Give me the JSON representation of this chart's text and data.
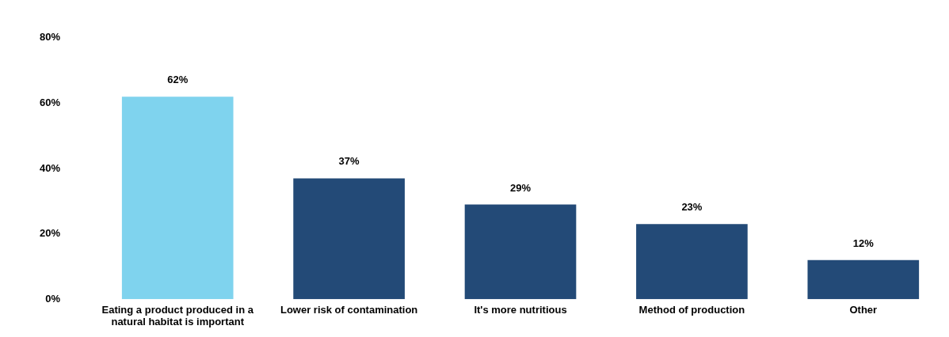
{
  "chart_data": {
    "type": "bar",
    "categories": [
      "Eating a product produced in a natural habitat is important",
      "Lower risk of contamination",
      "It's more nutritious",
      "Method of production",
      "Other"
    ],
    "values": [
      62,
      37,
      29,
      23,
      12
    ],
    "colors": [
      "#7fd3ee",
      "#234a77",
      "#234a77",
      "#234a77",
      "#234a77"
    ],
    "value_labels": [
      "62%",
      "37%",
      "29%",
      "23%",
      "12%"
    ],
    "ylim": [
      0,
      80
    ],
    "yticks": [
      {
        "value": 0,
        "label": "0%"
      },
      {
        "value": 20,
        "label": "20%"
      },
      {
        "value": 40,
        "label": "40%"
      },
      {
        "value": 60,
        "label": "60%"
      },
      {
        "value": 80,
        "label": "80%"
      }
    ],
    "grid": false,
    "legend": false
  }
}
